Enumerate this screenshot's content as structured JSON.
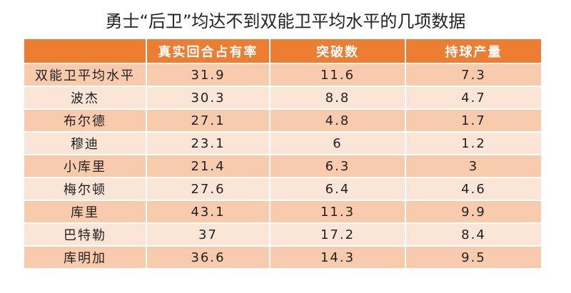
{
  "chart_data": {
    "type": "table",
    "title": "勇士“后卫”均达不到双能卫平均水平的几项数据",
    "columns": [
      "",
      "真实回合占有率",
      "突破数",
      "持球产量"
    ],
    "rows": [
      [
        "双能卫平均水平",
        "31.9",
        "11.6",
        "7.3"
      ],
      [
        "波杰",
        "30.3",
        "8.8",
        "4.7"
      ],
      [
        "布尔德",
        "27.1",
        "4.8",
        "1.7"
      ],
      [
        "穆迪",
        "23.1",
        "6",
        "1.2"
      ],
      [
        "小库里",
        "21.4",
        "6.3",
        "3"
      ],
      [
        "梅尔顿",
        "27.6",
        "6.4",
        "4.6"
      ],
      [
        "库里",
        "43.1",
        "11.3",
        "9.9"
      ],
      [
        "巴特勒",
        "37",
        "17.2",
        "8.4"
      ],
      [
        "库明加",
        "36.6",
        "14.3",
        "9.5"
      ]
    ]
  },
  "colors": {
    "header": "#ed7d31",
    "row_dark": "#f8cbad",
    "row_light": "#fbe5d6"
  }
}
